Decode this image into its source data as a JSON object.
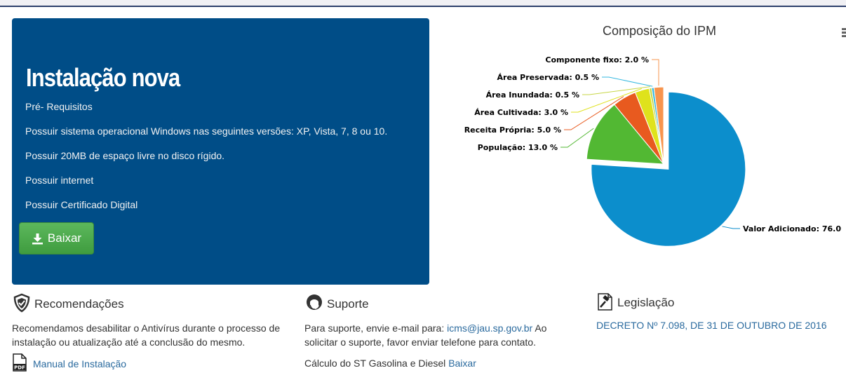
{
  "hero": {
    "title": "Instalação nova",
    "lines": [
      "Pré- Requisitos",
      "Possuir sistema operacional Windows nas seguintes versões: XP, Vista, 7, 8 ou 10.",
      "Possuir 20MB de espaço livre no disco rígido.",
      "Possuir internet",
      "Possuir Certificado Digital"
    ],
    "button_label": "Baixar"
  },
  "chart_data": {
    "type": "pie",
    "title": "Composição do IPM",
    "slices": [
      {
        "label": "Valor Adicionado",
        "value": 76.0,
        "display": "Valor Adicionado: 76.0",
        "color": "#0c8ecc"
      },
      {
        "label": "População",
        "value": 13.0,
        "display": "População: 13.0 %",
        "color": "#52b833"
      },
      {
        "label": "Receita Própria",
        "value": 5.0,
        "display": "Receita Própria: 5.0 %",
        "color": "#e85a1f"
      },
      {
        "label": "Área Cultivada",
        "value": 3.0,
        "display": "Área Cultivada: 3.0 %",
        "color": "#dfe21c"
      },
      {
        "label": "Área Inundada",
        "value": 0.5,
        "display": "Área Inundada: 0.5 %",
        "color": "#c7d646"
      },
      {
        "label": "Área Preservada",
        "value": 0.5,
        "display": "Área Preservada: 0.5 %",
        "color": "#35b8e0"
      },
      {
        "label": "Componente fixo",
        "value": 2.0,
        "display": "Componente fixo: 2.0 %",
        "color": "#f7944d"
      }
    ]
  },
  "recomendacoes": {
    "heading": "Recomendações",
    "text": "Recomendamos desabilitar o Antivírus durante o processo de instalação ou atualização até a conclusão do mesmo.",
    "link": "Manual de Instalação"
  },
  "suporte": {
    "heading": "Suporte",
    "text_before": "Para suporte, envie e-mail para: ",
    "email": "icms@jau.sp.gov.br",
    "text_after": " Ao solicitar o suporte, favor enviar telefone para contato.",
    "calc_text": "Cálculo do ST Gasolina e Diesel ",
    "calc_link": "Baixar"
  },
  "legislacao": {
    "heading": "Legislação",
    "link": "DECRETO Nº 7.098, DE 31 DE OUTUBRO DE 2016"
  }
}
